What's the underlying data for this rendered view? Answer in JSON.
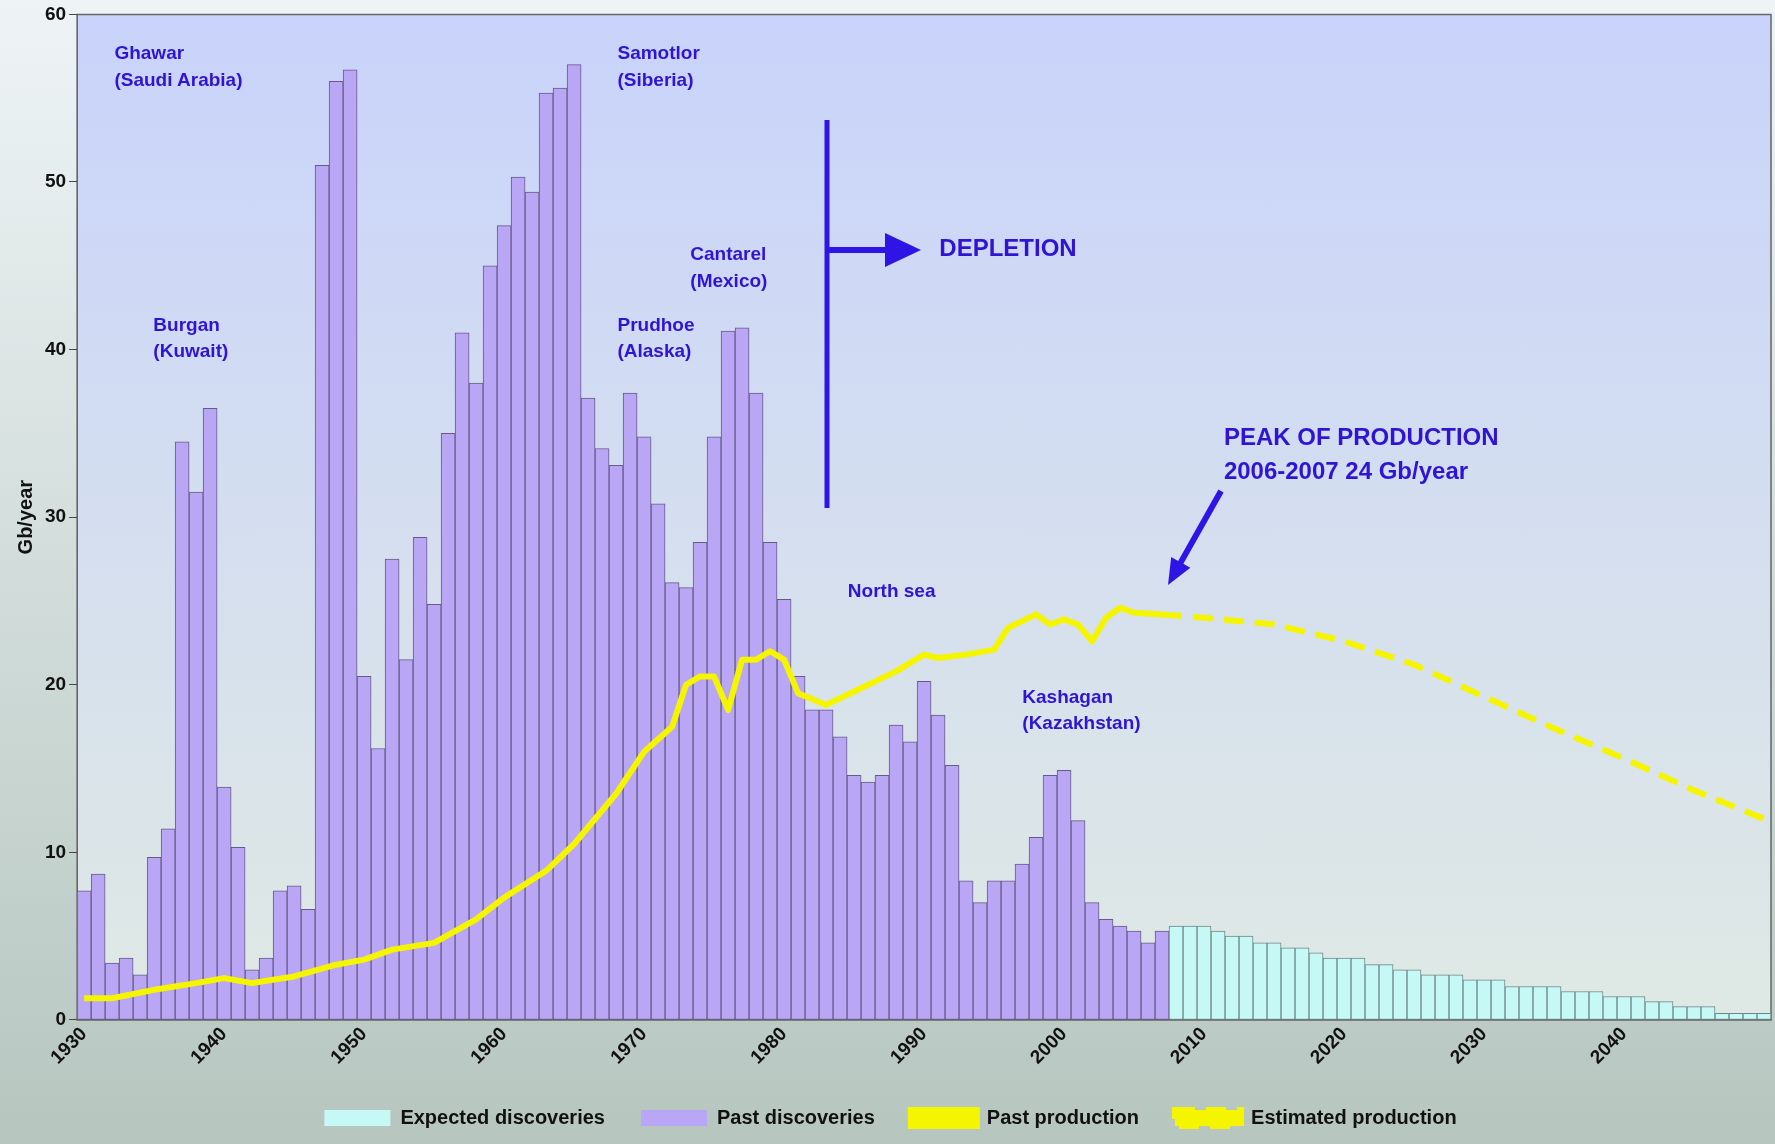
{
  "chart_data": {
    "type": "bar",
    "ylabel": "Gb/year",
    "ylim": [
      0,
      60
    ],
    "yticks": [
      0,
      10,
      20,
      30,
      40,
      50,
      60
    ],
    "xlim": [
      1929.5,
      2050.5
    ],
    "xticks": [
      1930,
      1940,
      1950,
      1960,
      1970,
      1980,
      1990,
      2000,
      2010,
      2020,
      2030,
      2040
    ],
    "grid": false,
    "legend": "bottom",
    "marker": "none",
    "series": [
      {
        "name": "Expected discoveries",
        "color": "#c6f8f6",
        "x": [
          2008,
          2009,
          2010,
          2011,
          2012,
          2013,
          2014,
          2015,
          2016,
          2017,
          2018,
          2019,
          2020,
          2021,
          2022,
          2023,
          2024,
          2025,
          2026,
          2027,
          2028,
          2029,
          2030,
          2031,
          2032,
          2033,
          2034,
          2035,
          2036,
          2037,
          2038,
          2039,
          2040,
          2041,
          2042,
          2043,
          2044,
          2045,
          2046,
          2047,
          2048,
          2049,
          2050
        ],
        "values": [
          5.6,
          5.6,
          5.6,
          5.3,
          5.0,
          5.0,
          4.6,
          4.6,
          4.3,
          4.3,
          4.0,
          3.7,
          3.7,
          3.7,
          3.3,
          3.3,
          3.0,
          3.0,
          2.7,
          2.7,
          2.7,
          2.4,
          2.4,
          2.4,
          2.0,
          2.0,
          2.0,
          2.0,
          1.7,
          1.7,
          1.7,
          1.4,
          1.4,
          1.4,
          1.1,
          1.1,
          0.8,
          0.8,
          0.8,
          0.4,
          0.4,
          0.4,
          0.4
        ]
      },
      {
        "name": "Past discoveries",
        "color": "#b9a6f5",
        "x": [
          1930,
          1931,
          1932,
          1933,
          1934,
          1935,
          1936,
          1937,
          1938,
          1939,
          1940,
          1941,
          1942,
          1943,
          1944,
          1945,
          1946,
          1947,
          1948,
          1949,
          1950,
          1951,
          1952,
          1953,
          1954,
          1955,
          1956,
          1957,
          1958,
          1959,
          1960,
          1961,
          1962,
          1963,
          1964,
          1965,
          1966,
          1967,
          1968,
          1969,
          1970,
          1971,
          1972,
          1973,
          1974,
          1975,
          1976,
          1977,
          1978,
          1979,
          1980,
          1981,
          1982,
          1983,
          1984,
          1985,
          1986,
          1987,
          1988,
          1989,
          1990,
          1991,
          1992,
          1993,
          1994,
          1995,
          1996,
          1997,
          1998,
          1999,
          2000,
          2001,
          2002,
          2003,
          2004,
          2005,
          2006,
          2007
        ],
        "values": [
          7.7,
          8.7,
          3.4,
          3.7,
          2.7,
          9.7,
          11.4,
          34.5,
          31.5,
          36.5,
          13.9,
          10.3,
          3.0,
          3.7,
          7.7,
          8.0,
          6.6,
          51.0,
          56.0,
          56.7,
          20.5,
          16.2,
          27.5,
          21.5,
          28.8,
          24.8,
          35.0,
          41.0,
          38.0,
          45.0,
          47.4,
          50.3,
          49.4,
          55.3,
          55.6,
          57.0,
          37.1,
          34.1,
          33.1,
          37.4,
          34.8,
          30.8,
          26.1,
          25.8,
          28.5,
          34.8,
          41.1,
          41.3,
          37.4,
          28.5,
          25.1,
          20.5,
          18.5,
          18.5,
          16.9,
          14.6,
          14.2,
          14.6,
          17.6,
          16.6,
          20.2,
          18.2,
          15.2,
          8.3,
          7.0,
          8.3,
          8.3,
          9.3,
          10.9,
          14.6,
          14.9,
          11.9,
          7.0,
          6.0,
          5.6,
          5.3,
          4.6,
          5.3
        ]
      },
      {
        "name": "Past production",
        "type": "line",
        "color": "#f5f500",
        "line_style": "solid",
        "x": [
          1930,
          1932,
          1935,
          1938,
          1940,
          1942,
          1945,
          1948,
          1950,
          1952,
          1955,
          1958,
          1960,
          1963,
          1965,
          1968,
          1970,
          1972,
          1973,
          1974,
          1975,
          1976,
          1977,
          1978,
          1979,
          1980,
          1981,
          1983,
          1985,
          1988,
          1990,
          1991,
          1993,
          1995,
          1996,
          1998,
          1999,
          2000,
          2001,
          2002,
          2003,
          2004,
          2005,
          2007
        ],
        "values": [
          1.3,
          1.3,
          1.8,
          2.2,
          2.5,
          2.2,
          2.6,
          3.3,
          3.6,
          4.2,
          4.6,
          6.0,
          7.3,
          8.9,
          10.5,
          13.5,
          16.0,
          17.5,
          20.0,
          20.5,
          20.5,
          18.5,
          21.5,
          21.5,
          22.0,
          21.5,
          19.5,
          18.8,
          19.6,
          20.8,
          21.8,
          21.6,
          21.8,
          22.1,
          23.4,
          24.2,
          23.6,
          23.9,
          23.6,
          22.6,
          24.0,
          24.6,
          24.3,
          24.2
        ]
      },
      {
        "name": "Estimated production",
        "type": "line",
        "color": "#f5f500",
        "line_style": "dashed",
        "x": [
          2007,
          2010,
          2015,
          2020,
          2025,
          2030,
          2035,
          2040,
          2045,
          2050
        ],
        "values": [
          24.2,
          24.0,
          23.6,
          22.6,
          21.2,
          19.3,
          17.4,
          15.6,
          13.7,
          12.0
        ]
      }
    ],
    "annotations": [
      "Ghawar\n(Saudi Arabia)",
      "Burgan\n(Kuwait)",
      "Samotlor\n(Siberia)",
      "Cantarel\n(Mexico)",
      "Prudhoe\n(Alaska)",
      "North sea",
      "Kashagan\n(Kazakhstan)",
      "DEPLETION",
      "PEAK OF PRODUCTION\n2006-2007 24 Gb/year"
    ]
  }
}
